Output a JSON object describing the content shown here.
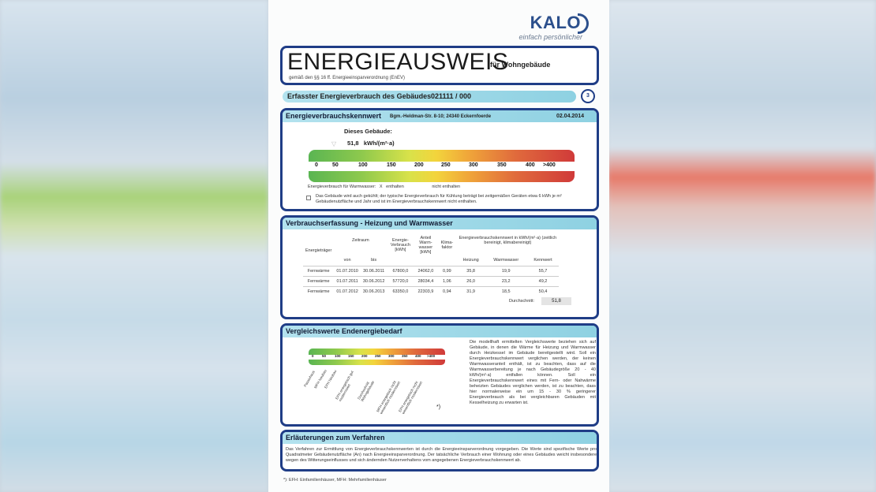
{
  "logo": {
    "brand": "KALO",
    "tagline": "einfach persönlicher"
  },
  "title": {
    "main": "ENERGIEAUSWEIS",
    "suffix": "für Wohngebäude",
    "sub": "gemäß den §§ 16 ff. Energieeinsparverordnung (EnEV)"
  },
  "bar": {
    "label": "Erfasster Energieverbrauch des Gebäudes",
    "number": "021111 / 000",
    "page": "3"
  },
  "kennwert": {
    "heading": "Energieverbrauchskennwert",
    "address": "Bgm.-Heldman-Str. 8-10; 24340 Eckernfoerde",
    "date": "02.04.2014",
    "building_label": "Dieses Gebäude:",
    "value": "51,8",
    "unit": "kWh/(m²·a)",
    "scale_ticks": [
      "0",
      "50",
      "100",
      "150",
      "200",
      "250",
      "300",
      "350",
      "400",
      ">400"
    ],
    "warmwasser_label": "Energieverbrauch für Warmwasser:",
    "warmwasser_x": "X",
    "enthalten": "enthalten",
    "nicht_enthalten": "nicht enthalten",
    "note": "Das Gebäude wird auch gekühlt; der typische Energieverbrauch für Kühlung beträgt bei zeitgemäßen Geräten etwa 6 kWh je m² Gebäudenutzfläche und Jahr und ist im Energieverbrauchskennwert nicht enthalten."
  },
  "verbrauch": {
    "heading": "Verbrauchserfassung - Heizung und Warmwasser",
    "headers": {
      "zeitraum": "Zeitraum",
      "energietraeger": "Energieträger",
      "von": "von",
      "bis": "bis",
      "energieverbrauch": "Energie-Verbrauch [kWh]",
      "anteil": "Anteil Warm-wasser [kWh]",
      "klima": "Klima-faktor",
      "kennwerte": "Energieverbrauchskennwert in kWh/(m²·a) (zeitlich bereinigt, klimabereinigt)",
      "heizung": "Heizung",
      "warmwasser": "Warmwasser",
      "kennwert": "Kennwert"
    },
    "rows": [
      [
        "Fernwärme",
        "01.07.2010",
        "30.06.2011",
        "67800,0",
        "24062,0",
        "0,99",
        "35,8",
        "19,9",
        "55,7"
      ],
      [
        "Fernwärme",
        "01.07.2011",
        "30.06.2012",
        "57720,0",
        "28034,4",
        "1,06",
        "26,0",
        "23,2",
        "49,2"
      ],
      [
        "Fernwärme",
        "01.07.2012",
        "30.06.2013",
        "63350,0",
        "22303,9",
        "0,94",
        "31,9",
        "18,5",
        "50,4"
      ]
    ],
    "avg_label": "Durchschnitt:",
    "avg": "51,8"
  },
  "vergleich": {
    "heading": "Vergleichswerte Endenergiebedarf",
    "ticks": [
      "0",
      "50",
      "100",
      "150",
      "200",
      "250",
      "300",
      "350",
      "400",
      ">400"
    ],
    "labels": [
      "Passivhaus",
      "MFH Neubau",
      "EFH Neubau",
      "EFH energetisch gut modernisiert",
      "Durchschnitt Wohngebäude",
      "MFH energetisch nicht wesentlich modernisiert",
      "EFH energetisch nicht wesentlich modernisiert"
    ],
    "star": "*)",
    "side_text": "Die modellhaft ermittelten Vergleichswerte beziehen sich auf Gebäude, in denen die Wärme für Heizung und Warmwasser durch Heizkessel im Gebäude bereitgestellt wird. Soll ein Energieverbrauchskennwert verglichen werden, der keinen Warmwasseranteil enthält, ist zu beachten, dass auf die Warmwasserbereitung je nach Gebäudegröße 20 - 40 kWh/(m²·a) entfallen können. Soll ein Energieverbrauchskennwert eines mit Fern- oder Nahwärme beheizten Gebäudes verglichen werden, ist zu beachten, dass hier normalerweise ein um 15 - 30 % geringerer Energieverbrauch als bei vergleichbaren Gebäuden mit Kesselheizung zu erwarten ist."
  },
  "erlaeuterung": {
    "heading": "Erläuterungen zum Verfahren",
    "text": "Das Verfahren zur Ermittlung von Energieverbrauchskennwerten ist durch die Energieeinsparverordnung vorgegeben. Die Werte sind spezifische Werte pro Quadratmeter Gebäudenutzfläche (An) nach Energieeinsparverordnung. Der tatsächliche Verbrauch einer Wohnung oder eines Gebäudes weicht insbesondere wegen des Witterungseinflusses und sich ändernden Nutzerverhaltens vom angegebenen Energieverbrauchskennwert ab."
  },
  "footnote": "*): EFH: Einfamilienhäuser, MFH: Mehrfamilienhäuser"
}
